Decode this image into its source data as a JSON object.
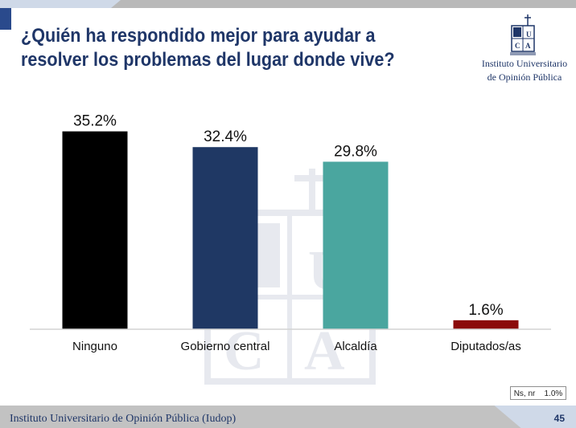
{
  "title": "¿Quién ha respondido mejor para ayudar a resolver los problemas del lugar donde vive?",
  "logo": {
    "line1": "Instituto Universitario",
    "line2": "de Opinión Pública",
    "mark_letters": "UCA"
  },
  "chart_data": {
    "type": "bar",
    "title": "¿Quién ha respondido mejor para ayudar a resolver los problemas del lugar donde vive?",
    "categories": [
      "Ninguno",
      "Gobierno central",
      "Alcaldía",
      "Diputados/as"
    ],
    "values": [
      35.2,
      32.4,
      29.8,
      1.6
    ],
    "value_labels": [
      "35.2%",
      "32.4%",
      "29.8%",
      "1.6%"
    ],
    "colors": [
      "#000000",
      "#1f3864",
      "#4aa69f",
      "#8b0a0a"
    ],
    "unit": "%",
    "xlabel": "",
    "ylabel": "",
    "ylim": [
      0,
      36
    ],
    "grid": false,
    "legend": "none",
    "axis_color": "#d4d4d4"
  },
  "note": {
    "label": "Ns, nr",
    "value": "1.0%"
  },
  "footer": {
    "text": "Instituto Universitario de Opinión Pública (Iudop)",
    "page": "45"
  },
  "colors": {
    "title": "#1f3668",
    "top_bar": "#b9b9b9",
    "footer_bar": "#c2c2c2"
  }
}
